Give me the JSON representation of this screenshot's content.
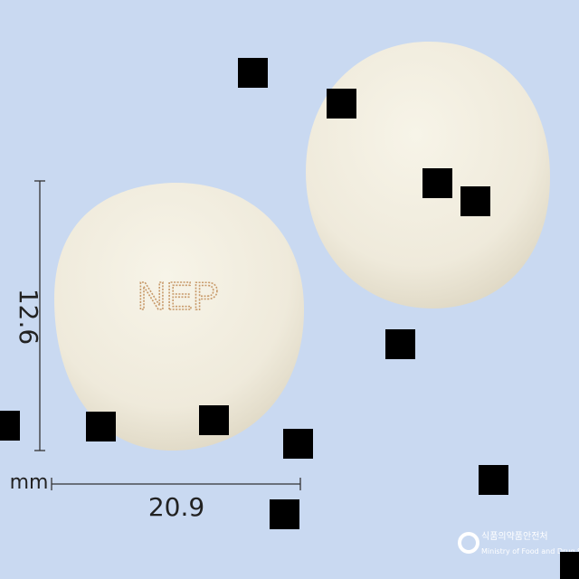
{
  "pill": {
    "imprint": "NEP"
  },
  "dimensions": {
    "height": "12.6",
    "unit": "mm",
    "width": "20.9"
  },
  "logo": {
    "korean": "식품의약품안전처",
    "english": "Ministry of Food and Drug Safe"
  }
}
